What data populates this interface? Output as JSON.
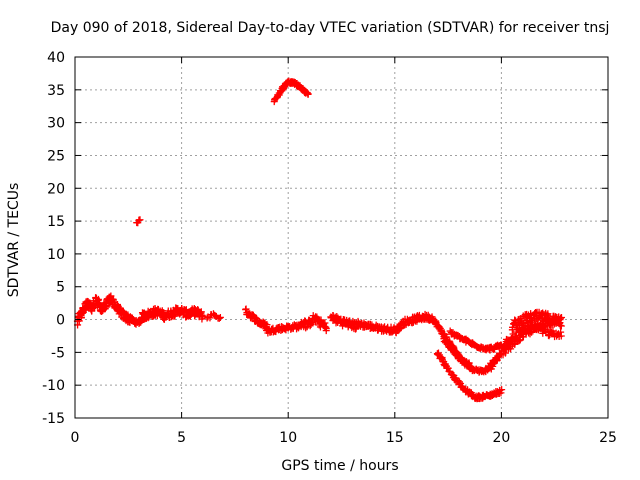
{
  "chart_data": {
    "type": "scatter",
    "title": "Day 090 of 2018, Sidereal Day-to-day VTEC variation (SDTVAR) for receiver tnsj",
    "xlabel": "GPS time / hours",
    "ylabel": "SDTVAR / TECUs",
    "xlim": [
      0,
      25
    ],
    "ylim": [
      -15,
      40
    ],
    "xticks": [
      0,
      5,
      10,
      15,
      20,
      25
    ],
    "yticks": [
      -15,
      -10,
      -5,
      0,
      5,
      10,
      15,
      20,
      25,
      30,
      35,
      40
    ],
    "xtick_labels": [
      "0",
      "5",
      "10",
      "15",
      "20",
      "25"
    ],
    "ytick_labels": [
      "-15",
      "-10",
      "-5",
      "0",
      "5",
      "10",
      "15",
      "20",
      "25",
      "30",
      "35",
      "40"
    ],
    "grid": true,
    "marker": "+",
    "color": "#ff0000",
    "series": [
      {
        "name": "SDTVAR",
        "segments": [
          {
            "x0": 0.1,
            "x1": 2.6,
            "y": [
              -0.5,
              1.2,
              2.6,
              1.8,
              3.0,
              1.5,
              2.4,
              3.2,
              2.0,
              1.0,
              0.4,
              0.0
            ],
            "spread": 1.2,
            "n": 160
          },
          {
            "x0": 2.6,
            "x1": 3.1,
            "y": [
              0.2,
              -0.3,
              -0.5,
              -0.2
            ],
            "spread": 0.6,
            "n": 25
          },
          {
            "x0": 3.1,
            "x1": 6.0,
            "y": [
              0.4,
              0.8,
              1.2,
              0.6,
              1.0,
              1.4,
              0.8,
              1.2,
              0.5
            ],
            "spread": 1.2,
            "n": 150
          },
          {
            "x0": 6.2,
            "x1": 6.8,
            "y": [
              0.3,
              0.8,
              0.2
            ],
            "spread": 0.5,
            "n": 12
          },
          {
            "x0": 8.0,
            "x1": 9.0,
            "y": [
              1.3,
              0.4,
              -0.5,
              -1.0
            ],
            "spread": 0.8,
            "n": 45
          },
          {
            "x0": 9.0,
            "x1": 10.6,
            "y": [
              -1.8,
              -1.4,
              -1.2,
              -1.0
            ],
            "spread": 0.7,
            "n": 60
          },
          {
            "x0": 10.6,
            "x1": 11.8,
            "y": [
              -0.4,
              -0.8,
              0.2,
              -0.5,
              -1.2
            ],
            "spread": 1.2,
            "n": 50
          },
          {
            "x0": 12.0,
            "x1": 13.2,
            "y": [
              0.3,
              -0.2,
              -0.6,
              -1.0
            ],
            "spread": 1.2,
            "n": 50
          },
          {
            "x0": 13.2,
            "x1": 15.0,
            "y": [
              -0.6,
              -1.0,
              -1.4,
              -1.6
            ],
            "spread": 0.8,
            "n": 70
          },
          {
            "x0": 15.0,
            "x1": 16.8,
            "y": [
              -1.8,
              -0.4,
              0.0,
              0.4,
              0.2
            ],
            "spread": 0.9,
            "n": 80
          },
          {
            "x0": 16.8,
            "x1": 18.5,
            "y": [
              0.0,
              -2.0,
              -4.0,
              -6.0,
              -6.8
            ],
            "spread": 0.6,
            "n": 70
          },
          {
            "x0": 17.0,
            "x1": 20.0,
            "y": [
              -5.0,
              -8.0,
              -10.5,
              -11.9,
              -11.6,
              -10.9
            ],
            "spread": 0.5,
            "n": 110
          },
          {
            "x0": 17.3,
            "x1": 19.8,
            "y": [
              -3.0,
              -5.5,
              -7.5,
              -8.0,
              -6.0
            ],
            "spread": 0.5,
            "n": 90
          },
          {
            "x0": 17.6,
            "x1": 20.0,
            "y": [
              -2.0,
              -3.0,
              -4.0,
              -4.5,
              -4.0
            ],
            "spread": 0.5,
            "n": 80
          },
          {
            "x0": 19.4,
            "x1": 22.8,
            "y": [
              -7.5,
              -5.0,
              -3.0,
              -1.5,
              -0.5,
              0.0
            ],
            "spread": 1.0,
            "n": 110
          },
          {
            "x0": 20.5,
            "x1": 22.8,
            "y": [
              -1.0,
              0.0,
              0.4,
              0.2,
              -0.4
            ],
            "spread": 1.5,
            "n": 90
          },
          {
            "x0": 20.0,
            "x1": 22.8,
            "y": [
              -4.0,
              -2.0,
              -1.0,
              -2.0,
              -2.4
            ],
            "spread": 1.0,
            "n": 70
          },
          {
            "x0": 2.9,
            "x1": 3.05,
            "y": [
              14.8,
              15.2
            ],
            "spread": 0.3,
            "n": 5
          },
          {
            "x0": 9.35,
            "x1": 10.95,
            "y": [
              33.2,
              35.0,
              36.2,
              36.0,
              35.2,
              34.2
            ],
            "spread": 0.4,
            "n": 70
          }
        ]
      }
    ]
  }
}
